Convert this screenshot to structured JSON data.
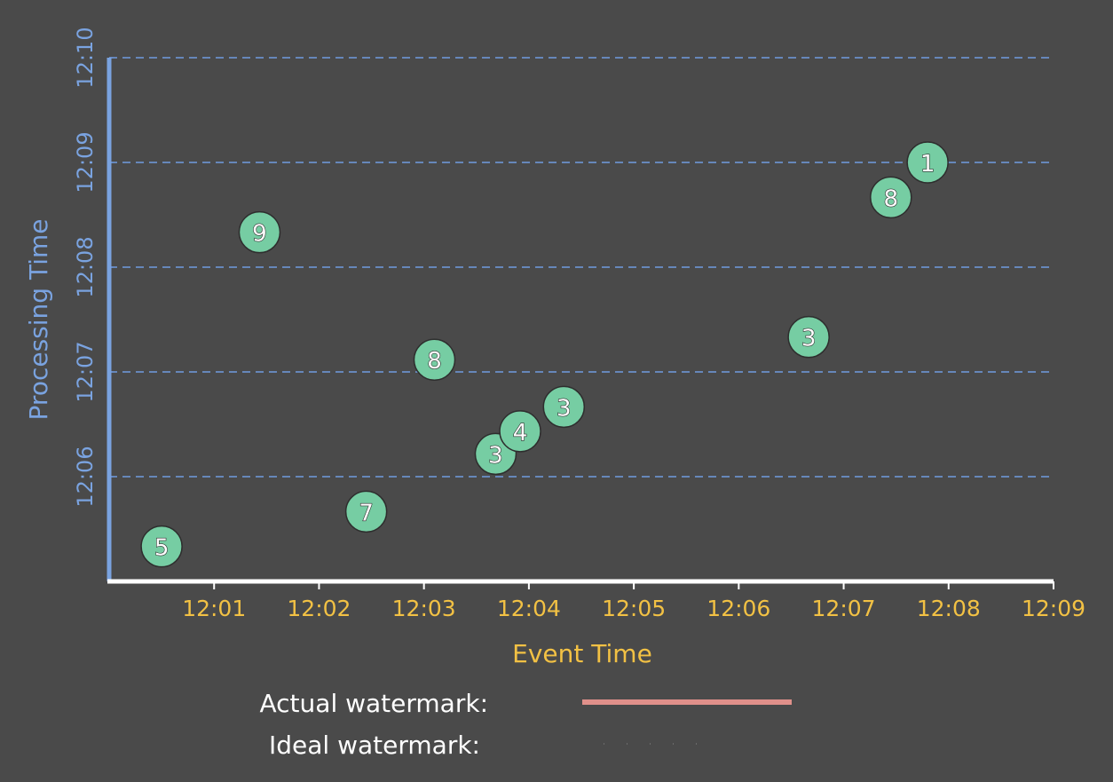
{
  "chart_data": {
    "type": "scatter",
    "xlabel": "Event Time",
    "ylabel": "Processing Time",
    "x_ticks": [
      "12:01",
      "12:02",
      "12:03",
      "12:04",
      "12:05",
      "12:06",
      "12:07",
      "12:08",
      "12:09"
    ],
    "y_ticks": [
      "12:06",
      "12:07",
      "12:08",
      "12:09",
      "12:10"
    ],
    "xlim": [
      "12:00",
      "12:09"
    ],
    "ylim": [
      "12:05",
      "12:10"
    ],
    "grid": "horizontal dashed",
    "points": [
      {
        "x": "12:00:30",
        "y": "12:05:20",
        "value": "5"
      },
      {
        "x": "12:01:26",
        "y": "12:08:20",
        "value": "9"
      },
      {
        "x": "12:02:27",
        "y": "12:05:40",
        "value": "7"
      },
      {
        "x": "12:03:06",
        "y": "12:07:07",
        "value": "8"
      },
      {
        "x": "12:03:41",
        "y": "12:06:13",
        "value": "3"
      },
      {
        "x": "12:03:55",
        "y": "12:06:26",
        "value": "4"
      },
      {
        "x": "12:04:20",
        "y": "12:06:40",
        "value": "3"
      },
      {
        "x": "12:06:40",
        "y": "12:07:20",
        "value": "3"
      },
      {
        "x": "12:07:27",
        "y": "12:08:40",
        "value": "8"
      },
      {
        "x": "12:07:48",
        "y": "12:09:00",
        "value": "1"
      }
    ],
    "legend": [
      {
        "label": "Actual watermark:",
        "color": "#e0908a"
      },
      {
        "label": "Ideal watermark:",
        "color": "#ffffff"
      }
    ],
    "colors": {
      "background": "#4a4a4a",
      "x_axis": "#ffffff",
      "y_axis": "#7aa3e0",
      "grid": "#6f9be0",
      "x_text": "#f2c144",
      "y_text": "#7aa3e0",
      "point_fill": "#76cda3",
      "point_stroke": "#2e2e2e"
    }
  }
}
